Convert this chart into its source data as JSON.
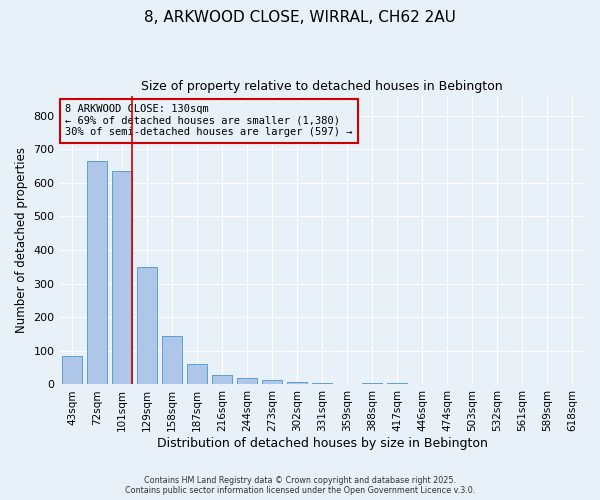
{
  "title1": "8, ARKWOOD CLOSE, WIRRAL, CH62 2AU",
  "title2": "Size of property relative to detached houses in Bebington",
  "xlabel": "Distribution of detached houses by size in Bebington",
  "ylabel": "Number of detached properties",
  "categories": [
    "43sqm",
    "72sqm",
    "101sqm",
    "129sqm",
    "158sqm",
    "187sqm",
    "216sqm",
    "244sqm",
    "273sqm",
    "302sqm",
    "331sqm",
    "359sqm",
    "388sqm",
    "417sqm",
    "446sqm",
    "474sqm",
    "503sqm",
    "532sqm",
    "561sqm",
    "589sqm",
    "618sqm"
  ],
  "values": [
    85,
    665,
    635,
    350,
    145,
    60,
    28,
    18,
    12,
    7,
    4,
    0,
    4,
    4,
    0,
    0,
    0,
    0,
    0,
    0,
    0
  ],
  "bar_color": "#aec6e8",
  "bar_edge_color": "#5a9fd4",
  "vline_color": "#cc0000",
  "annotation_text": "8 ARKWOOD CLOSE: 130sqm\n← 69% of detached houses are smaller (1,380)\n30% of semi-detached houses are larger (597) →",
  "annotation_box_color": "#cc0000",
  "annotation_text_color": "#000000",
  "ylim": [
    0,
    860
  ],
  "yticks": [
    0,
    100,
    200,
    300,
    400,
    500,
    600,
    700,
    800
  ],
  "bg_color": "#e8f0f8",
  "grid_color": "#ffffff",
  "title_fontsize": 11,
  "subtitle_fontsize": 9,
  "tick_fontsize": 7.5,
  "footer_text": "Contains HM Land Registry data © Crown copyright and database right 2025.\nContains public sector information licensed under the Open Government Licence v.3.0."
}
